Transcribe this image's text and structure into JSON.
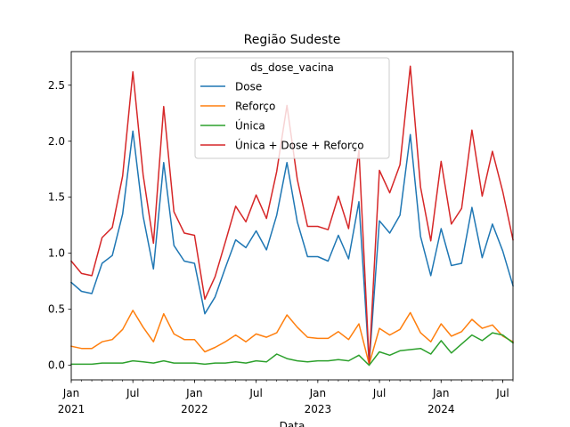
{
  "chart_data": {
    "type": "line",
    "title": "Região Sudeste",
    "xlabel": "Data",
    "ylabel": "",
    "ylim": [
      -0.13,
      2.8
    ],
    "grid": false,
    "legend": {
      "title": "ds_dose_vacina",
      "placement": "top-center"
    },
    "x_start": "2021-01",
    "x_end": "2024-08",
    "x_ticks": [
      {
        "index": 0,
        "label": "Jan",
        "year": "2021"
      },
      {
        "index": 6,
        "label": "Jul",
        "year": ""
      },
      {
        "index": 12,
        "label": "Jan",
        "year": "2022"
      },
      {
        "index": 18,
        "label": "Jul",
        "year": ""
      },
      {
        "index": 24,
        "label": "Jan",
        "year": "2023"
      },
      {
        "index": 30,
        "label": "Jul",
        "year": ""
      },
      {
        "index": 36,
        "label": "Jan",
        "year": "2024"
      },
      {
        "index": 42,
        "label": "Jul",
        "year": ""
      }
    ],
    "y_ticks": [
      0.0,
      0.5,
      1.0,
      1.5,
      2.0,
      2.5
    ],
    "y_tick_labels": [
      "0.0",
      "0.5",
      "1.0",
      "1.5",
      "2.0",
      "2.5"
    ],
    "series": [
      {
        "name": "Dose",
        "color": "#1f77b4",
        "values": [
          0.74,
          0.66,
          0.64,
          0.91,
          0.98,
          1.35,
          2.09,
          1.33,
          0.86,
          1.81,
          1.07,
          0.93,
          0.91,
          0.46,
          0.61,
          0.87,
          1.12,
          1.05,
          1.2,
          1.03,
          1.34,
          1.81,
          1.28,
          0.97,
          0.97,
          0.93,
          1.16,
          0.95,
          1.46,
          0.01,
          1.29,
          1.18,
          1.34,
          2.06,
          1.15,
          0.8,
          1.22,
          0.89,
          0.91,
          1.41,
          0.96,
          1.26,
          1.02,
          0.71
        ]
      },
      {
        "name": "Reforço",
        "color": "#ff7f0e",
        "values": [
          0.17,
          0.15,
          0.15,
          0.21,
          0.23,
          0.32,
          0.49,
          0.34,
          0.21,
          0.46,
          0.28,
          0.23,
          0.23,
          0.12,
          0.16,
          0.21,
          0.27,
          0.21,
          0.28,
          0.25,
          0.29,
          0.45,
          0.34,
          0.25,
          0.24,
          0.24,
          0.3,
          0.23,
          0.37,
          0.01,
          0.33,
          0.27,
          0.32,
          0.47,
          0.29,
          0.21,
          0.37,
          0.26,
          0.3,
          0.41,
          0.33,
          0.36,
          0.26,
          0.21
        ]
      },
      {
        "name": "Única",
        "color": "#2ca02c",
        "values": [
          0.01,
          0.01,
          0.01,
          0.02,
          0.02,
          0.02,
          0.04,
          0.03,
          0.02,
          0.04,
          0.02,
          0.02,
          0.02,
          0.01,
          0.02,
          0.02,
          0.03,
          0.02,
          0.04,
          0.03,
          0.1,
          0.06,
          0.04,
          0.03,
          0.04,
          0.04,
          0.05,
          0.04,
          0.09,
          0.0,
          0.12,
          0.09,
          0.13,
          0.14,
          0.15,
          0.1,
          0.22,
          0.11,
          0.19,
          0.27,
          0.22,
          0.29,
          0.27,
          0.2
        ]
      },
      {
        "name": "Única + Dose + Reforço",
        "color": "#d62728",
        "values": [
          0.93,
          0.82,
          0.8,
          1.14,
          1.23,
          1.69,
          2.62,
          1.7,
          1.09,
          2.31,
          1.37,
          1.18,
          1.16,
          0.59,
          0.79,
          1.1,
          1.42,
          1.28,
          1.52,
          1.31,
          1.73,
          2.32,
          1.66,
          1.24,
          1.24,
          1.21,
          1.51,
          1.22,
          1.92,
          0.02,
          1.74,
          1.54,
          1.79,
          2.67,
          1.59,
          1.11,
          1.82,
          1.26,
          1.4,
          2.1,
          1.51,
          1.91,
          1.55,
          1.12
        ]
      }
    ]
  }
}
